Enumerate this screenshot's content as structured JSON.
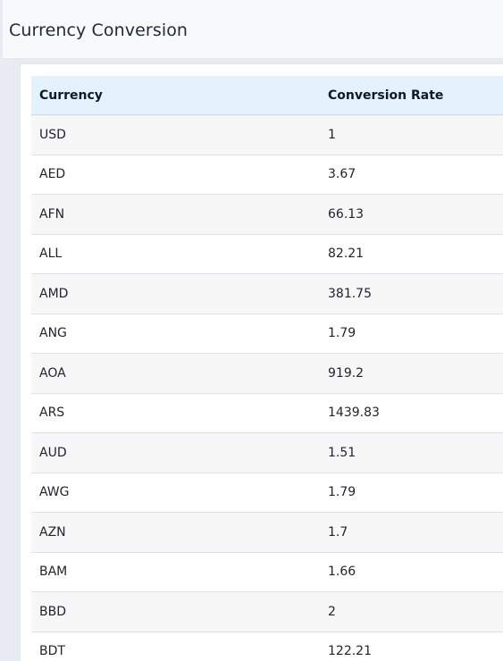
{
  "header": {
    "title": "Currency Conversion"
  },
  "table": {
    "columns": [
      "Currency",
      "Conversion Rate"
    ],
    "rows": [
      {
        "currency": "USD",
        "rate": "1"
      },
      {
        "currency": "AED",
        "rate": "3.67"
      },
      {
        "currency": "AFN",
        "rate": "66.13"
      },
      {
        "currency": "ALL",
        "rate": "82.21"
      },
      {
        "currency": "AMD",
        "rate": "381.75"
      },
      {
        "currency": "ANG",
        "rate": "1.79"
      },
      {
        "currency": "AOA",
        "rate": "919.2"
      },
      {
        "currency": "ARS",
        "rate": "1439.83"
      },
      {
        "currency": "AUD",
        "rate": "1.51"
      },
      {
        "currency": "AWG",
        "rate": "1.79"
      },
      {
        "currency": "AZN",
        "rate": "1.7"
      },
      {
        "currency": "BAM",
        "rate": "1.66"
      },
      {
        "currency": "BBD",
        "rate": "2"
      },
      {
        "currency": "BDT",
        "rate": "122.21"
      }
    ]
  },
  "colors": {
    "page_background": "#e9ebf2",
    "header_background": "#f8f9fa",
    "table_header_background": "#e3f2fd",
    "row_stripe": "#f7f7f7",
    "text": "#212529"
  }
}
